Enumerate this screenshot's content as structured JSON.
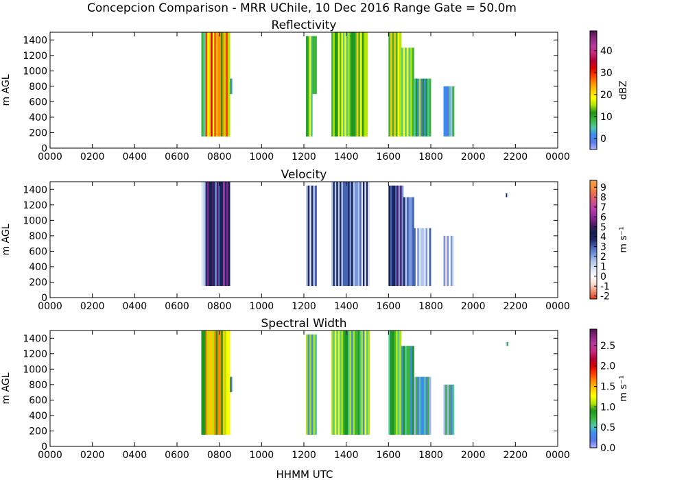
{
  "figure": {
    "suptitle": "Concepcion Comparison - MRR UChile, 10 Dec 2016 Range Gate = 50.0m",
    "xlabel": "HHMM UTC"
  },
  "chart_data": [
    {
      "type": "heatmap",
      "title": "Reflectivity",
      "xlabel": "",
      "ylabel": "m AGL",
      "xlim": [
        0,
        2400
      ],
      "ylim": [
        0,
        1500
      ],
      "xticks": [
        "0000",
        "0200",
        "0400",
        "0600",
        "0800",
        "1000",
        "1200",
        "1400",
        "1600",
        "1800",
        "2000",
        "2200",
        "0000"
      ],
      "yticks": [
        "0",
        "200",
        "400",
        "600",
        "800",
        "1000",
        "1200",
        "1400"
      ],
      "colorbar": {
        "label": "dBZ",
        "range": [
          -5,
          49
        ],
        "ticks": [
          "0",
          "10",
          "20",
          "30",
          "40"
        ],
        "colors": [
          "#aab4ff",
          "#5a78e6",
          "#3c8cf0",
          "#50c8a0",
          "#3cb43c",
          "#1e961e",
          "#b4e600",
          "#ffff00",
          "#ffc800",
          "#ff8c00",
          "#ff3c00",
          "#dc0000",
          "#b4003c",
          "#c8287c",
          "#b43ca0",
          "#8c287c",
          "#501450"
        ]
      },
      "bands": [
        {
          "start": 715,
          "end": 735,
          "top": 1500,
          "bottom": 150,
          "level": 0.22
        },
        {
          "start": 735,
          "end": 760,
          "top": 1500,
          "bottom": 150,
          "level": 0.5
        },
        {
          "start": 760,
          "end": 800,
          "top": 1500,
          "bottom": 150,
          "level": 0.55
        },
        {
          "start": 800,
          "end": 830,
          "top": 1500,
          "bottom": 150,
          "level": 0.45
        },
        {
          "start": 830,
          "end": 850,
          "top": 1500,
          "bottom": 150,
          "level": 0.5
        },
        {
          "start": 850,
          "end": 860,
          "top": 900,
          "bottom": 700,
          "level": 0.2
        },
        {
          "start": 1210,
          "end": 1240,
          "top": 1450,
          "bottom": 150,
          "level": 0.32
        },
        {
          "start": 1240,
          "end": 1260,
          "top": 1450,
          "bottom": 700,
          "level": 0.28
        },
        {
          "start": 1330,
          "end": 1400,
          "top": 1500,
          "bottom": 150,
          "level": 0.34
        },
        {
          "start": 1400,
          "end": 1440,
          "top": 1500,
          "bottom": 150,
          "level": 0.3
        },
        {
          "start": 1440,
          "end": 1500,
          "top": 1500,
          "bottom": 150,
          "level": 0.36
        },
        {
          "start": 1600,
          "end": 1660,
          "top": 1500,
          "bottom": 150,
          "level": 0.36
        },
        {
          "start": 1660,
          "end": 1720,
          "top": 1300,
          "bottom": 150,
          "level": 0.3
        },
        {
          "start": 1720,
          "end": 1800,
          "top": 900,
          "bottom": 150,
          "level": 0.22
        },
        {
          "start": 1860,
          "end": 1910,
          "top": 800,
          "bottom": 150,
          "level": 0.12
        }
      ]
    },
    {
      "type": "heatmap",
      "title": "Velocity",
      "xlabel": "",
      "ylabel": "m s⁻¹",
      "ylabel_left": "m AGL",
      "xlim": [
        0,
        2400
      ],
      "ylim": [
        0,
        1500
      ],
      "xticks": [
        "0000",
        "0200",
        "0400",
        "0600",
        "0800",
        "1000",
        "1200",
        "1400",
        "1600",
        "1800",
        "2000",
        "2200",
        "0000"
      ],
      "yticks": [
        "0",
        "200",
        "400",
        "600",
        "800",
        "1000",
        "1200",
        "1400"
      ],
      "colorbar": {
        "label": "m s⁻¹",
        "range": [
          -2.3,
          9.7
        ],
        "ticks": [
          "-2",
          "-1",
          "0",
          "1",
          "2",
          "3",
          "4",
          "5",
          "6",
          "7",
          "8",
          "9"
        ],
        "colors": [
          "#dc3c1e",
          "#f08c6e",
          "#fadcd2",
          "#ffffff",
          "#dce6f5",
          "#b4c8eb",
          "#7896dc",
          "#4664b4",
          "#1e2864",
          "#142050",
          "#501e64",
          "#8c2896",
          "#b43caa",
          "#c8508c",
          "#e6645a",
          "#f08c3c",
          "#f5a050"
        ]
      },
      "bands": [
        {
          "start": 715,
          "end": 735,
          "top": 1500,
          "bottom": 150,
          "level": 0.3
        },
        {
          "start": 735,
          "end": 780,
          "top": 1500,
          "bottom": 150,
          "level": 0.6
        },
        {
          "start": 780,
          "end": 810,
          "top": 1500,
          "bottom": 150,
          "level": 0.5
        },
        {
          "start": 810,
          "end": 850,
          "top": 1500,
          "bottom": 150,
          "level": 0.62
        },
        {
          "start": 1210,
          "end": 1260,
          "top": 1450,
          "bottom": 150,
          "level": 0.4
        },
        {
          "start": 1330,
          "end": 1400,
          "top": 1500,
          "bottom": 150,
          "level": 0.42
        },
        {
          "start": 1400,
          "end": 1440,
          "top": 1500,
          "bottom": 150,
          "level": 0.45
        },
        {
          "start": 1440,
          "end": 1510,
          "top": 1500,
          "bottom": 150,
          "level": 0.35
        },
        {
          "start": 1600,
          "end": 1670,
          "top": 1450,
          "bottom": 150,
          "level": 0.5
        },
        {
          "start": 1670,
          "end": 1720,
          "top": 1300,
          "bottom": 150,
          "level": 0.4
        },
        {
          "start": 1720,
          "end": 1800,
          "top": 900,
          "bottom": 150,
          "level": 0.3
        },
        {
          "start": 1860,
          "end": 1910,
          "top": 800,
          "bottom": 150,
          "level": 0.28
        },
        {
          "start": 2155,
          "end": 2165,
          "top": 1350,
          "bottom": 1300,
          "level": 0.45
        }
      ]
    },
    {
      "type": "heatmap",
      "title": "Spectral Width",
      "xlabel": "HHMM UTC",
      "ylabel": "m AGL",
      "xlim": [
        0,
        2400
      ],
      "ylim": [
        0,
        1500
      ],
      "xticks": [
        "0000",
        "0200",
        "0400",
        "0600",
        "0800",
        "1000",
        "1200",
        "1400",
        "1600",
        "1800",
        "2000",
        "2200",
        "0000"
      ],
      "yticks": [
        "0",
        "200",
        "400",
        "600",
        "800",
        "1000",
        "1200",
        "1400"
      ],
      "colorbar": {
        "label": "m s⁻¹",
        "range": [
          0,
          2.9
        ],
        "ticks": [
          "0.0",
          "0.5",
          "1.0",
          "1.5",
          "2.0",
          "2.5"
        ],
        "colors": [
          "#aab4ff",
          "#5a78e6",
          "#3c8cf0",
          "#50c8a0",
          "#3cb43c",
          "#1e961e",
          "#b4e600",
          "#ffff00",
          "#ffc800",
          "#ff8c00",
          "#ff3c00",
          "#dc0000",
          "#b4003c",
          "#c8287c",
          "#b43ca0",
          "#8c287c",
          "#501450"
        ]
      },
      "bands": [
        {
          "start": 715,
          "end": 735,
          "top": 1500,
          "bottom": 150,
          "level": 0.3
        },
        {
          "start": 735,
          "end": 800,
          "top": 1500,
          "bottom": 150,
          "level": 0.45
        },
        {
          "start": 800,
          "end": 850,
          "top": 1500,
          "bottom": 150,
          "level": 0.42
        },
        {
          "start": 850,
          "end": 860,
          "top": 900,
          "bottom": 700,
          "level": 0.2
        },
        {
          "start": 1210,
          "end": 1260,
          "top": 1450,
          "bottom": 150,
          "level": 0.25
        },
        {
          "start": 1330,
          "end": 1400,
          "top": 1500,
          "bottom": 150,
          "level": 0.3
        },
        {
          "start": 1400,
          "end": 1440,
          "top": 1500,
          "bottom": 150,
          "level": 0.25
        },
        {
          "start": 1440,
          "end": 1510,
          "top": 1500,
          "bottom": 150,
          "level": 0.28
        },
        {
          "start": 1600,
          "end": 1660,
          "top": 1500,
          "bottom": 150,
          "level": 0.28
        },
        {
          "start": 1660,
          "end": 1720,
          "top": 1300,
          "bottom": 150,
          "level": 0.22
        },
        {
          "start": 1720,
          "end": 1800,
          "top": 900,
          "bottom": 150,
          "level": 0.15
        },
        {
          "start": 1860,
          "end": 1910,
          "top": 800,
          "bottom": 150,
          "level": 0.12
        },
        {
          "start": 2155,
          "end": 2165,
          "top": 1350,
          "bottom": 1300,
          "level": 0.12
        }
      ]
    }
  ]
}
